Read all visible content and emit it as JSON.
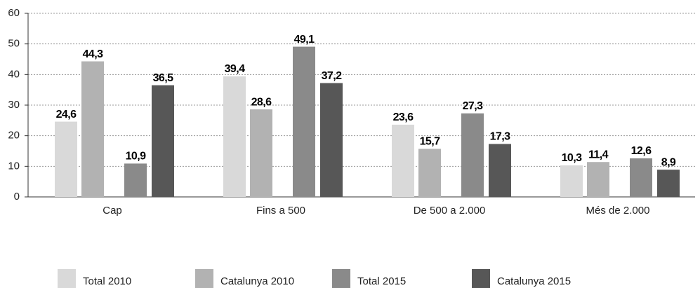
{
  "chart_data": {
    "type": "bar",
    "categories": [
      "Cap",
      "Fins a 500",
      "De 500 a 2.000",
      "Més de 2.000"
    ],
    "series": [
      {
        "name": "Total 2010",
        "color": "#d9d9d9",
        "values": [
          24.6,
          39.4,
          23.6,
          10.3
        ],
        "value_labels": [
          "24,6",
          "39,4",
          "23,6",
          "10,3"
        ]
      },
      {
        "name": "Catalunya 2010",
        "color": "#b2b2b2",
        "values": [
          44.3,
          28.6,
          15.7,
          11.4
        ],
        "value_labels": [
          "44,3",
          "28,6",
          "15,7",
          "11,4"
        ]
      },
      {
        "name": "Total 2015",
        "color": "#8a8a8a",
        "values": [
          10.9,
          49.1,
          27.3,
          12.6
        ],
        "value_labels": [
          "10,9",
          "49,1",
          "27,3",
          "12,6"
        ]
      },
      {
        "name": "Catalunya 2015",
        "color": "#575757",
        "values": [
          36.5,
          37.2,
          17.3,
          8.9
        ],
        "value_labels": [
          "36,5",
          "37,2",
          "17,3",
          "8,9"
        ]
      }
    ],
    "ylim": [
      0,
      60
    ],
    "yticks": [
      0,
      10,
      20,
      30,
      40,
      50,
      60
    ],
    "grid": true,
    "legend": "bottom"
  }
}
